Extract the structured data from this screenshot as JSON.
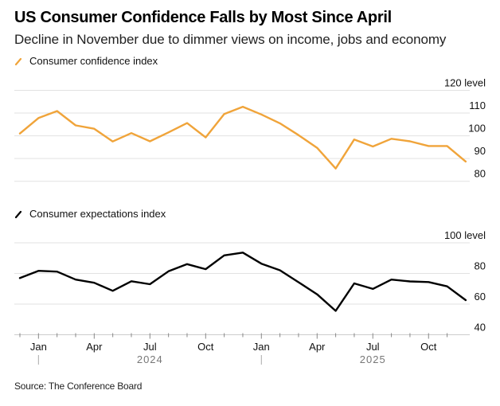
{
  "title": "US Consumer Confidence Falls by Most Since April",
  "subtitle": "Decline in November due to dimmer views on income, jobs and economy",
  "source": "Source: The Conference Board",
  "colors": {
    "confidence": "#f0a43a",
    "expectations": "#000000",
    "grid": "#e2e2e2",
    "axis": "#cccccc"
  },
  "chart_data": [
    {
      "type": "line",
      "title": "Consumer confidence index",
      "legend": "Consumer confidence index",
      "xlabel": "",
      "ylabel": "level",
      "ylim": [
        80,
        120
      ],
      "yticks": [
        80,
        90,
        100,
        110,
        120
      ],
      "ytick_labels": [
        "80",
        "90",
        "100",
        "110",
        "120 level"
      ],
      "grid": true,
      "x": [
        "2023-11",
        "2023-12",
        "2024-01",
        "2024-02",
        "2024-03",
        "2024-04",
        "2024-05",
        "2024-06",
        "2024-07",
        "2024-08",
        "2024-09",
        "2024-10",
        "2024-11",
        "2024-12",
        "2025-01",
        "2025-02",
        "2025-03",
        "2025-04",
        "2025-05",
        "2025-06",
        "2025-07",
        "2025-08",
        "2025-09",
        "2025-10",
        "2025-11"
      ],
      "series": [
        {
          "name": "Consumer confidence index",
          "values": [
            101.0,
            107.8,
            110.9,
            104.6,
            103.1,
            97.5,
            101.2,
            97.6,
            101.5,
            105.6,
            99.3,
            109.6,
            112.8,
            109.4,
            105.5,
            100.3,
            94.7,
            85.6,
            98.4,
            95.3,
            98.7,
            97.6,
            95.5,
            95.5,
            88.7
          ]
        }
      ]
    },
    {
      "type": "line",
      "title": "Consumer expectations index",
      "legend": "Consumer expectations index",
      "xlabel": "",
      "ylabel": "level",
      "ylim": [
        40,
        100
      ],
      "yticks": [
        40,
        60,
        80,
        100
      ],
      "ytick_labels": [
        "40",
        "60",
        "80",
        "100 level"
      ],
      "grid": true,
      "x": [
        "2023-11",
        "2023-12",
        "2024-01",
        "2024-02",
        "2024-03",
        "2024-04",
        "2024-05",
        "2024-06",
        "2024-07",
        "2024-08",
        "2024-09",
        "2024-10",
        "2024-11",
        "2024-12",
        "2025-01",
        "2025-02",
        "2025-03",
        "2025-04",
        "2025-05",
        "2025-06",
        "2025-07",
        "2025-08",
        "2025-09",
        "2025-10",
        "2025-11"
      ],
      "series": [
        {
          "name": "Consumer expectations index",
          "values": [
            77.0,
            81.7,
            81.2,
            76.0,
            73.9,
            68.7,
            74.9,
            73.0,
            81.4,
            86.1,
            82.8,
            91.8,
            93.6,
            86.4,
            82.1,
            74.3,
            66.4,
            55.6,
            73.5,
            69.9,
            76.0,
            74.8,
            74.4,
            71.6,
            62.6
          ]
        }
      ]
    }
  ],
  "x_axis": {
    "month_labels": [
      {
        "label": "Jan",
        "month": "2024-01"
      },
      {
        "label": "Apr",
        "month": "2024-04"
      },
      {
        "label": "Jul",
        "month": "2024-07"
      },
      {
        "label": "Oct",
        "month": "2024-10"
      },
      {
        "label": "Jan",
        "month": "2025-01"
      },
      {
        "label": "Apr",
        "month": "2025-04"
      },
      {
        "label": "Jul",
        "month": "2025-07"
      },
      {
        "label": "Oct",
        "month": "2025-10"
      }
    ],
    "year_labels": [
      {
        "label": "2024",
        "month": "2024-07"
      },
      {
        "label": "2025",
        "month": "2025-07"
      }
    ],
    "tick_months": [
      "2023-12",
      "2024-01",
      "2024-02",
      "2024-03",
      "2024-04",
      "2024-05",
      "2024-06",
      "2024-07",
      "2024-08",
      "2024-09",
      "2024-10",
      "2024-11",
      "2024-12",
      "2025-01",
      "2025-02",
      "2025-03",
      "2025-04",
      "2025-05",
      "2025-06",
      "2025-07",
      "2025-08",
      "2025-09",
      "2025-10",
      "2025-11"
    ],
    "year_dividers": [
      "2024-01",
      "2025-01"
    ]
  }
}
